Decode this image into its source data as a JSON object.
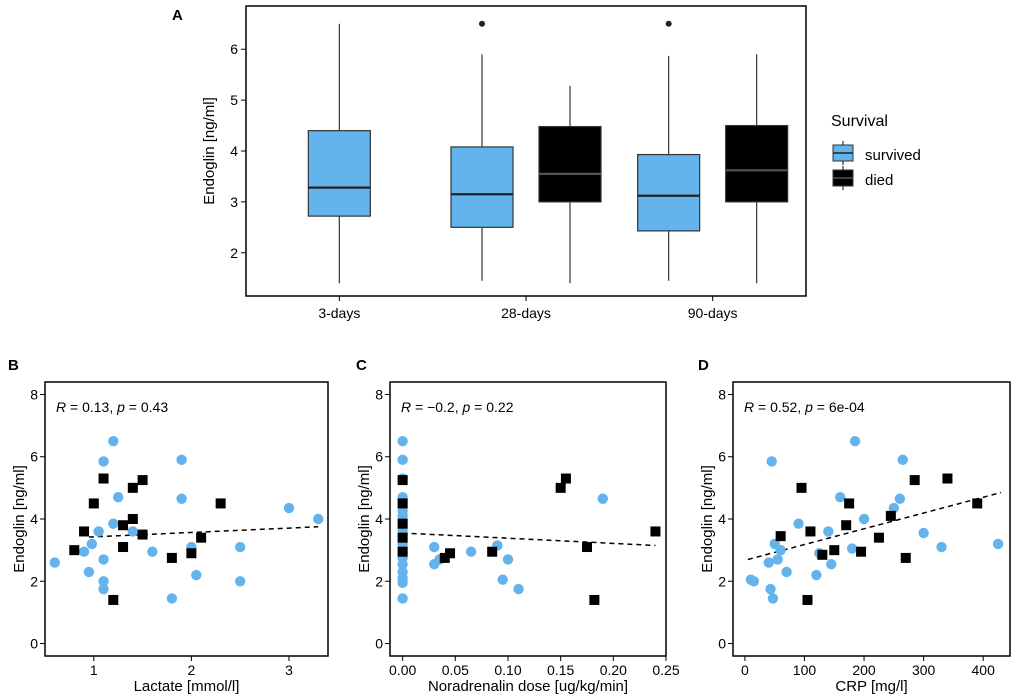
{
  "colors": {
    "survived": "#63b3ec",
    "died": "#000000",
    "frame": "#000000"
  },
  "chart_data": [
    {
      "panel": "A",
      "type": "box",
      "xlabel": "",
      "ylabel": "Endoglin [ng/ml]",
      "ylim": [
        1.15,
        6.85
      ],
      "yticks": [
        2,
        3,
        4,
        5,
        6
      ],
      "categories": [
        "3-days",
        "28-days",
        "90-days"
      ],
      "legend": {
        "title": "Survival",
        "entries": [
          "survived",
          "died"
        ],
        "position": "right"
      },
      "boxes": [
        {
          "category": "3-days",
          "group": "survived",
          "min": 1.4,
          "q1": 2.72,
          "median": 3.28,
          "q3": 4.4,
          "max": 6.5,
          "outliers": []
        },
        {
          "category": "28-days",
          "group": "survived",
          "min": 1.45,
          "q1": 2.5,
          "median": 3.15,
          "q3": 4.08,
          "max": 5.9,
          "outliers": [
            6.5
          ]
        },
        {
          "category": "28-days",
          "group": "died",
          "min": 1.4,
          "q1": 3.0,
          "median": 3.55,
          "q3": 4.48,
          "max": 5.28,
          "outliers": []
        },
        {
          "category": "90-days",
          "group": "survived",
          "min": 1.45,
          "q1": 2.43,
          "median": 3.12,
          "q3": 3.93,
          "max": 5.87,
          "outliers": [
            6.5
          ]
        },
        {
          "category": "90-days",
          "group": "died",
          "min": 1.4,
          "q1": 3.0,
          "median": 3.62,
          "q3": 4.5,
          "max": 5.9,
          "outliers": []
        }
      ]
    },
    {
      "panel": "B",
      "type": "scatter",
      "xlabel": "Lactate [mmol/l]",
      "ylabel": "Endoglin [ng/ml]",
      "xlim": [
        0.5,
        3.4
      ],
      "ylim": [
        -0.4,
        8.4
      ],
      "xticks": [
        1,
        2,
        3
      ],
      "yticks": [
        0,
        2,
        4,
        6,
        8
      ],
      "annotation": {
        "r_label": "R",
        "r_text": " = 0.13, ",
        "p_label": "p",
        "p_text": " = 0.43"
      },
      "trend": {
        "x": [
          0.95,
          3.3
        ],
        "y": [
          3.42,
          3.75
        ]
      },
      "survived": [
        {
          "x": 0.6,
          "y": 2.6
        },
        {
          "x": 0.9,
          "y": 2.95
        },
        {
          "x": 0.95,
          "y": 2.3
        },
        {
          "x": 0.98,
          "y": 3.2
        },
        {
          "x": 1.05,
          "y": 3.6
        },
        {
          "x": 1.1,
          "y": 5.85
        },
        {
          "x": 1.1,
          "y": 2.7
        },
        {
          "x": 1.1,
          "y": 2.0
        },
        {
          "x": 1.1,
          "y": 1.75
        },
        {
          "x": 1.2,
          "y": 6.5
        },
        {
          "x": 1.2,
          "y": 3.85
        },
        {
          "x": 1.25,
          "y": 4.7
        },
        {
          "x": 1.4,
          "y": 3.6
        },
        {
          "x": 1.6,
          "y": 2.95
        },
        {
          "x": 1.8,
          "y": 1.45
        },
        {
          "x": 1.9,
          "y": 5.9
        },
        {
          "x": 1.9,
          "y": 4.65
        },
        {
          "x": 2.0,
          "y": 3.1
        },
        {
          "x": 2.05,
          "y": 2.2
        },
        {
          "x": 2.5,
          "y": 3.1
        },
        {
          "x": 2.5,
          "y": 2.0
        },
        {
          "x": 3.0,
          "y": 4.35
        },
        {
          "x": 3.3,
          "y": 4.0
        }
      ],
      "died": [
        {
          "x": 0.8,
          "y": 3.0
        },
        {
          "x": 0.9,
          "y": 3.6
        },
        {
          "x": 1.0,
          "y": 4.5
        },
        {
          "x": 1.1,
          "y": 5.3
        },
        {
          "x": 1.2,
          "y": 1.4
        },
        {
          "x": 1.3,
          "y": 3.8
        },
        {
          "x": 1.3,
          "y": 3.1
        },
        {
          "x": 1.4,
          "y": 4.0
        },
        {
          "x": 1.4,
          "y": 5.0
        },
        {
          "x": 1.5,
          "y": 3.5
        },
        {
          "x": 1.5,
          "y": 5.25
        },
        {
          "x": 1.8,
          "y": 2.75
        },
        {
          "x": 2.0,
          "y": 2.9
        },
        {
          "x": 2.1,
          "y": 3.4
        },
        {
          "x": 2.3,
          "y": 4.5
        }
      ]
    },
    {
      "panel": "C",
      "type": "scatter",
      "xlabel": "Noradrenalin dose [ug/kg/min]",
      "ylabel": "Endoglin [ng/ml]",
      "xlim": [
        -0.012,
        0.25
      ],
      "ylim": [
        -0.4,
        8.4
      ],
      "xticks": [
        0.0,
        0.05,
        0.1,
        0.15,
        0.2,
        0.25
      ],
      "xticklabels": [
        "0.00",
        "0.05",
        "0.10",
        "0.15",
        "0.20",
        "0.25"
      ],
      "yticks": [
        0,
        2,
        4,
        6,
        8
      ],
      "annotation": {
        "r_label": "R",
        "r_text": " = −0.2, ",
        "p_label": "p",
        "p_text": " = 0.22"
      },
      "trend": {
        "x": [
          0.0,
          0.24
        ],
        "y": [
          3.55,
          3.15
        ]
      },
      "survived": [
        {
          "x": 0.0,
          "y": 6.5
        },
        {
          "x": 0.0,
          "y": 5.9
        },
        {
          "x": 0.0,
          "y": 5.3
        },
        {
          "x": 0.0,
          "y": 4.7
        },
        {
          "x": 0.0,
          "y": 4.55
        },
        {
          "x": 0.0,
          "y": 4.4
        },
        {
          "x": 0.0,
          "y": 4.25
        },
        {
          "x": 0.0,
          "y": 4.1
        },
        {
          "x": 0.0,
          "y": 3.95
        },
        {
          "x": 0.0,
          "y": 3.8
        },
        {
          "x": 0.0,
          "y": 3.65
        },
        {
          "x": 0.0,
          "y": 3.5
        },
        {
          "x": 0.0,
          "y": 3.35
        },
        {
          "x": 0.0,
          "y": 3.2
        },
        {
          "x": 0.0,
          "y": 3.05
        },
        {
          "x": 0.0,
          "y": 2.9
        },
        {
          "x": 0.0,
          "y": 2.75
        },
        {
          "x": 0.0,
          "y": 2.55
        },
        {
          "x": 0.0,
          "y": 2.3
        },
        {
          "x": 0.0,
          "y": 2.1
        },
        {
          "x": 0.0,
          "y": 1.95
        },
        {
          "x": 0.0,
          "y": 1.45
        },
        {
          "x": 0.03,
          "y": 3.1
        },
        {
          "x": 0.03,
          "y": 2.55
        },
        {
          "x": 0.035,
          "y": 2.7
        },
        {
          "x": 0.065,
          "y": 2.95
        },
        {
          "x": 0.09,
          "y": 3.15
        },
        {
          "x": 0.095,
          "y": 2.05
        },
        {
          "x": 0.1,
          "y": 2.7
        },
        {
          "x": 0.11,
          "y": 1.75
        },
        {
          "x": 0.19,
          "y": 4.65
        }
      ],
      "died": [
        {
          "x": 0.0,
          "y": 5.25
        },
        {
          "x": 0.0,
          "y": 4.5
        },
        {
          "x": 0.0,
          "y": 3.85
        },
        {
          "x": 0.0,
          "y": 3.4
        },
        {
          "x": 0.0,
          "y": 2.95
        },
        {
          "x": 0.04,
          "y": 2.75
        },
        {
          "x": 0.045,
          "y": 2.9
        },
        {
          "x": 0.085,
          "y": 2.95
        },
        {
          "x": 0.15,
          "y": 5.0
        },
        {
          "x": 0.155,
          "y": 5.3
        },
        {
          "x": 0.175,
          "y": 3.1
        },
        {
          "x": 0.182,
          "y": 1.4
        },
        {
          "x": 0.24,
          "y": 3.6
        }
      ]
    },
    {
      "panel": "D",
      "type": "scatter",
      "xlabel": "CRP [mg/l]",
      "ylabel": "Endoglin [ng/ml]",
      "xlim": [
        -20,
        445
      ],
      "ylim": [
        -0.4,
        8.4
      ],
      "xticks": [
        0,
        100,
        200,
        300,
        400
      ],
      "yticks": [
        0,
        2,
        4,
        6,
        8
      ],
      "annotation": {
        "r_label": "R",
        "r_text": " = 0.52, ",
        "p_label": "p",
        "p_text": " = 6e-04"
      },
      "trend": {
        "x": [
          5,
          430
        ],
        "y": [
          2.7,
          4.85
        ]
      },
      "survived": [
        {
          "x": 10,
          "y": 2.05
        },
        {
          "x": 15,
          "y": 2.0
        },
        {
          "x": 40,
          "y": 2.6
        },
        {
          "x": 43,
          "y": 1.75
        },
        {
          "x": 45,
          "y": 5.85
        },
        {
          "x": 47,
          "y": 1.45
        },
        {
          "x": 50,
          "y": 3.2
        },
        {
          "x": 55,
          "y": 2.7
        },
        {
          "x": 60,
          "y": 3.0
        },
        {
          "x": 70,
          "y": 2.3
        },
        {
          "x": 90,
          "y": 3.85
        },
        {
          "x": 120,
          "y": 2.2
        },
        {
          "x": 125,
          "y": 2.9
        },
        {
          "x": 140,
          "y": 3.6
        },
        {
          "x": 145,
          "y": 2.55
        },
        {
          "x": 160,
          "y": 4.7
        },
        {
          "x": 180,
          "y": 3.05
        },
        {
          "x": 185,
          "y": 6.5
        },
        {
          "x": 200,
          "y": 4.0
        },
        {
          "x": 250,
          "y": 4.35
        },
        {
          "x": 260,
          "y": 4.65
        },
        {
          "x": 265,
          "y": 5.9
        },
        {
          "x": 300,
          "y": 3.55
        },
        {
          "x": 330,
          "y": 3.1
        },
        {
          "x": 425,
          "y": 3.2
        }
      ],
      "died": [
        {
          "x": 60,
          "y": 3.45
        },
        {
          "x": 95,
          "y": 5.0
        },
        {
          "x": 105,
          "y": 1.4
        },
        {
          "x": 110,
          "y": 3.6
        },
        {
          "x": 130,
          "y": 2.85
        },
        {
          "x": 150,
          "y": 3.0
        },
        {
          "x": 170,
          "y": 3.8
        },
        {
          "x": 175,
          "y": 4.5
        },
        {
          "x": 195,
          "y": 2.95
        },
        {
          "x": 225,
          "y": 3.4
        },
        {
          "x": 245,
          "y": 4.1
        },
        {
          "x": 270,
          "y": 2.75
        },
        {
          "x": 285,
          "y": 5.25
        },
        {
          "x": 340,
          "y": 5.3
        },
        {
          "x": 390,
          "y": 4.5
        }
      ]
    }
  ]
}
